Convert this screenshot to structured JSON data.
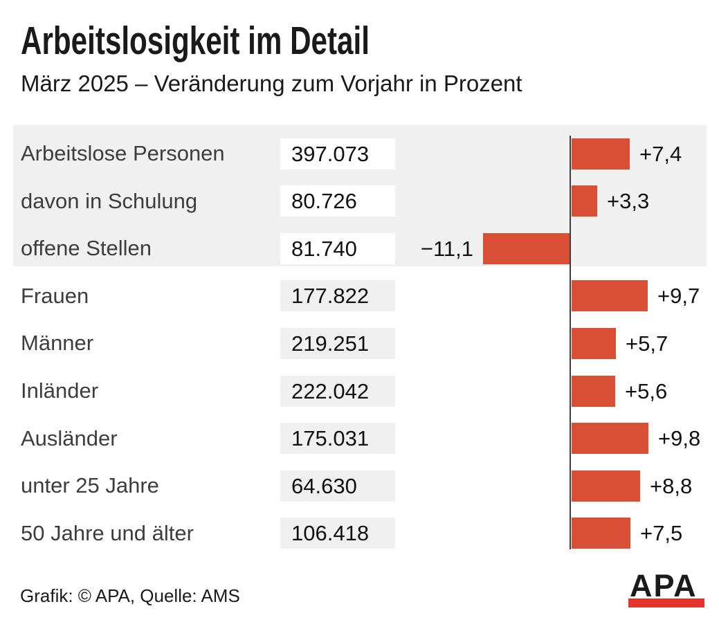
{
  "title": "Arbeitslosigkeit im Detail",
  "subtitle": "März 2025 – Veränderung zum Vorjahr in Prozent",
  "footer": {
    "credit": "Grafik: © APA, Quelle: AMS",
    "logo_text": "APA"
  },
  "colors": {
    "bar": "#d94f35",
    "highlight_block": "#f0f0f1",
    "value_box_on_block": "#ffffff",
    "value_box_on_white": "#f0f0f1",
    "axis_line": "#3c3c3c",
    "logo_red": "#e5332d",
    "label_text": "#3d3d3d",
    "number_text": "#111111"
  },
  "chart_data": {
    "type": "bar",
    "orientation": "horizontal",
    "title": "Arbeitslosigkeit im Detail",
    "subtitle": "März 2025 – Veränderung zum Vorjahr in Prozent",
    "unit_note": "Veränderung zum Vorjahr in Prozent",
    "zero_baseline": true,
    "x_range": [
      -12,
      10
    ],
    "grid": false,
    "legend": false,
    "rows": [
      {
        "label": "Arbeitslose Personen",
        "count": "397.073",
        "change_pct": 7.4,
        "change_label": "+7,4"
      },
      {
        "label": "davon in Schulung",
        "count": "80.726",
        "change_pct": 3.3,
        "change_label": "+3,3"
      },
      {
        "label": "offene Stellen",
        "count": "81.740",
        "change_pct": -11.1,
        "change_label": "−11,1"
      },
      {
        "label": "Frauen",
        "count": "177.822",
        "change_pct": 9.7,
        "change_label": "+9,7"
      },
      {
        "label": "Männer",
        "count": "219.251",
        "change_pct": 5.7,
        "change_label": "+5,7"
      },
      {
        "label": "Inländer",
        "count": "222.042",
        "change_pct": 5.6,
        "change_label": "+5,6"
      },
      {
        "label": "Ausländer",
        "count": "175.031",
        "change_pct": 9.8,
        "change_label": "+9,8"
      },
      {
        "label": "unter 25 Jahre",
        "count": "64.630",
        "change_pct": 8.8,
        "change_label": "+8,8"
      },
      {
        "label": "50 Jahre und älter",
        "count": "106.418",
        "change_pct": 7.5,
        "change_label": "+7,5"
      }
    ]
  }
}
